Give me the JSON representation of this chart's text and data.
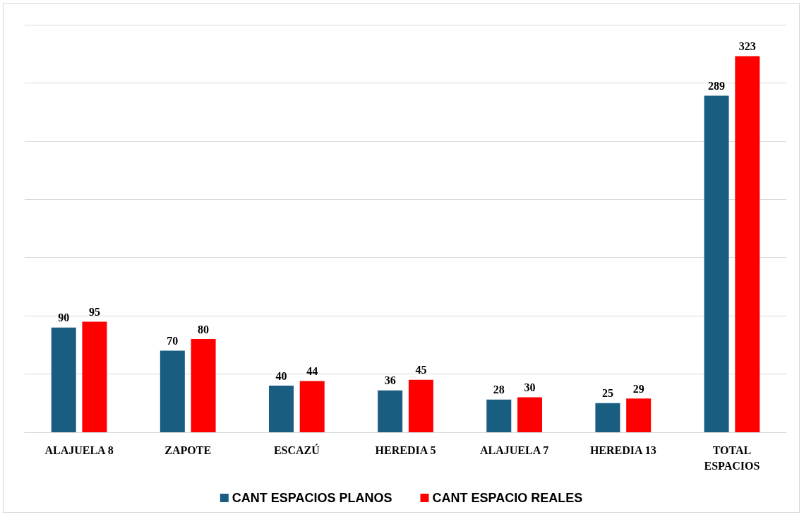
{
  "chart_data": {
    "type": "bar",
    "categories": [
      "ALAJUELA 8",
      "ZAPOTE",
      "ESCAZÚ",
      "HEREDIA 5",
      "ALAJUELA 7",
      "HEREDIA 13",
      "TOTAL\nESPACIOS"
    ],
    "series": [
      {
        "name": "CANT ESPACIOS PLANOS",
        "color": "#195e80",
        "values": [
          90,
          70,
          40,
          36,
          28,
          25,
          289
        ]
      },
      {
        "name": "CANT ESPACIO REALES",
        "color": "#ff0000",
        "values": [
          95,
          80,
          44,
          45,
          30,
          29,
          323
        ]
      }
    ],
    "ylim": [
      0,
      350
    ],
    "yticks": [
      {
        "value": 0,
        "label": null
      },
      {
        "value": 50,
        "label": null
      },
      {
        "value": 100,
        "label": null
      },
      {
        "value": 150,
        "label": null
      },
      {
        "value": 200,
        "label": null
      },
      {
        "value": 250,
        "label": null
      },
      {
        "value": 300,
        "label": null
      },
      {
        "value": 350,
        "label": null
      }
    ],
    "tick_labels": "x",
    "grid": "y",
    "legend": "bottom",
    "data_labels": true
  }
}
